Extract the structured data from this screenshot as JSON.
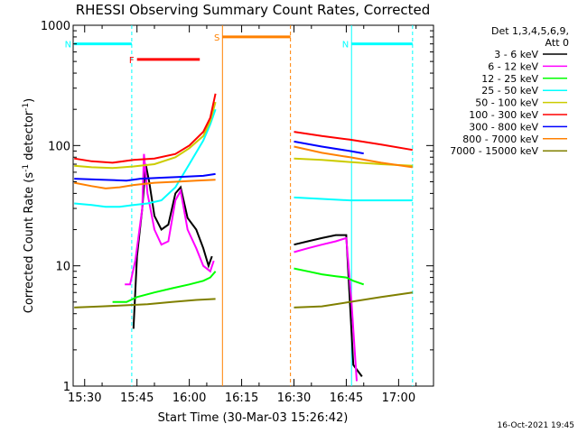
{
  "chart_data": {
    "type": "line",
    "title": "RHESSI Observing Summary Count Rates, Corrected",
    "xlabel": "Start Time (30-Mar-03 15:26:42)",
    "ylabel_main": "Corrected Count Rate (s",
    "ylabel_sup1": "-1",
    "ylabel_mid": " detector",
    "ylabel_sup2": "-1",
    "ylabel_end": ")",
    "y_scale": "log",
    "ylim": [
      1,
      1000
    ],
    "xlim": [
      "15:26:42",
      "17:10:00"
    ],
    "x_ticks": [
      "15:30",
      "15:45",
      "16:00",
      "16:15",
      "16:30",
      "16:45",
      "17:00"
    ],
    "y_ticks": [
      "1",
      "10",
      "100",
      "1000"
    ],
    "legend_header": [
      "Det 1,3,4,5,6,9,",
      "Att 0"
    ],
    "series": [
      {
        "name": "3 - 6 keV",
        "color": "#000000",
        "segments": [
          [
            [
              "15:44:00",
              3
            ],
            [
              "15:45:00",
              12
            ],
            [
              "15:46:30",
              30
            ],
            [
              "15:47:30",
              70
            ],
            [
              "15:48:30",
              50
            ],
            [
              "15:50:00",
              26
            ],
            [
              "15:52:00",
              20
            ],
            [
              "15:54:00",
              22
            ],
            [
              "15:56:00",
              40
            ],
            [
              "15:57:30",
              45
            ],
            [
              "15:59:30",
              25
            ],
            [
              "16:02:00",
              20
            ],
            [
              "16:04:00",
              14
            ],
            [
              "16:05:30",
              10
            ],
            [
              "16:06:30",
              12
            ]
          ],
          [
            [
              "16:30:00",
              15
            ],
            [
              "16:34:00",
              16
            ],
            [
              "16:38:00",
              17
            ],
            [
              "16:42:00",
              18
            ],
            [
              "16:45:00",
              18
            ],
            [
              "16:47:00",
              1.5
            ],
            [
              "16:49:30",
              1.2
            ]
          ]
        ]
      },
      {
        "name": "6 - 12 keV",
        "color": "#ff00ff",
        "segments": [
          [
            [
              "15:41:30",
              7
            ],
            [
              "15:43:00",
              7
            ],
            [
              "15:44:30",
              11
            ],
            [
              "15:46:30",
              30
            ],
            [
              "15:47:00",
              85
            ],
            [
              "15:48:00",
              40
            ],
            [
              "15:50:00",
              20
            ],
            [
              "15:52:00",
              15
            ],
            [
              "15:54:00",
              16
            ],
            [
              "15:56:00",
              35
            ],
            [
              "15:57:30",
              42
            ],
            [
              "15:59:30",
              20
            ],
            [
              "16:02:00",
              14
            ],
            [
              "16:04:00",
              10
            ],
            [
              "16:06:00",
              9
            ],
            [
              "16:07:00",
              11
            ]
          ],
          [
            [
              "16:30:00",
              13
            ],
            [
              "16:34:00",
              14
            ],
            [
              "16:38:00",
              15
            ],
            [
              "16:42:00",
              16
            ],
            [
              "16:45:00",
              17
            ],
            [
              "16:46:30",
              5
            ],
            [
              "16:48:00",
              1.1
            ]
          ]
        ]
      },
      {
        "name": "12 - 25 keV",
        "color": "#00ff00",
        "segments": [
          [
            [
              "15:38:00",
              5
            ],
            [
              "15:42:00",
              5
            ],
            [
              "15:45:00",
              5.5
            ],
            [
              "15:50:00",
              6
            ],
            [
              "15:55:00",
              6.5
            ],
            [
              "16:00:00",
              7
            ],
            [
              "16:04:00",
              7.5
            ],
            [
              "16:06:00",
              8
            ],
            [
              "16:07:30",
              9
            ]
          ],
          [
            [
              "16:30:00",
              9.5
            ],
            [
              "16:34:00",
              9
            ],
            [
              "16:38:00",
              8.5
            ],
            [
              "16:42:00",
              8.2
            ],
            [
              "16:45:00",
              8
            ],
            [
              "16:47:00",
              7.5
            ],
            [
              "16:50:00",
              7
            ]
          ]
        ]
      },
      {
        "name": "25 - 50 keV",
        "color": "#00ffff",
        "segments": [
          [
            [
              "15:27:00",
              33
            ],
            [
              "15:32:00",
              32
            ],
            [
              "15:36:00",
              31
            ],
            [
              "15:40:00",
              31
            ],
            [
              "15:44:00",
              32
            ],
            [
              "15:48:00",
              33
            ],
            [
              "15:52:00",
              35
            ],
            [
              "15:56:00",
              45
            ],
            [
              "16:00:00",
              70
            ],
            [
              "16:04:00",
              110
            ],
            [
              "16:06:00",
              150
            ],
            [
              "16:07:30",
              200
            ]
          ],
          [
            [
              "16:30:00",
              37
            ],
            [
              "16:38:00",
              36
            ],
            [
              "16:46:00",
              35
            ],
            [
              "16:55:00",
              35
            ],
            [
              "17:04:00",
              35
            ]
          ]
        ]
      },
      {
        "name": "50 - 100 keV",
        "color": "#cccc00",
        "segments": [
          [
            [
              "15:27:00",
              68
            ],
            [
              "15:32:00",
              66
            ],
            [
              "15:38:00",
              65
            ],
            [
              "15:44:00",
              67
            ],
            [
              "15:50:00",
              70
            ],
            [
              "15:56:00",
              80
            ],
            [
              "16:00:00",
              95
            ],
            [
              "16:04:00",
              120
            ],
            [
              "16:06:00",
              160
            ],
            [
              "16:07:30",
              230
            ]
          ],
          [
            [
              "16:30:00",
              78
            ],
            [
              "16:38:00",
              76
            ],
            [
              "16:46:00",
              73
            ],
            [
              "16:55:00",
              70
            ],
            [
              "17:04:00",
              68
            ]
          ]
        ]
      },
      {
        "name": "100 - 300 keV",
        "color": "#ff0000",
        "segments": [
          [
            [
              "15:27:00",
              78
            ],
            [
              "15:32:00",
              74
            ],
            [
              "15:38:00",
              72
            ],
            [
              "15:44:00",
              76
            ],
            [
              "15:50:00",
              78
            ],
            [
              "15:56:00",
              85
            ],
            [
              "16:00:00",
              100
            ],
            [
              "16:04:00",
              130
            ],
            [
              "16:06:00",
              170
            ],
            [
              "16:07:30",
              270
            ]
          ],
          [
            [
              "16:30:00",
              130
            ],
            [
              "16:38:00",
              120
            ],
            [
              "16:46:00",
              112
            ],
            [
              "16:55:00",
              102
            ],
            [
              "17:04:00",
              92
            ]
          ]
        ]
      },
      {
        "name": "300 - 800 keV",
        "color": "#0000ff",
        "segments": [
          [
            [
              "15:27:00",
              53
            ],
            [
              "15:35:00",
              52
            ],
            [
              "15:42:00",
              51
            ],
            [
              "15:46:00",
              53
            ],
            [
              "15:52:00",
              54
            ],
            [
              "15:58:00",
              55
            ],
            [
              "16:04:00",
              56
            ],
            [
              "16:07:30",
              58
            ]
          ],
          [
            [
              "16:30:00",
              108
            ],
            [
              "16:38:00",
              98
            ],
            [
              "16:46:00",
              90
            ],
            [
              "16:50:00",
              86
            ]
          ]
        ]
      },
      {
        "name": "800 - 7000 keV",
        "color": "#ff8000",
        "segments": [
          [
            [
              "15:27:00",
              49
            ],
            [
              "15:32:00",
              46
            ],
            [
              "15:36:00",
              44
            ],
            [
              "15:40:00",
              45
            ],
            [
              "15:44:00",
              47
            ],
            [
              "15:50:00",
              49
            ],
            [
              "15:56:00",
              50
            ],
            [
              "16:02:00",
              51
            ],
            [
              "16:07:30",
              52
            ]
          ],
          [
            [
              "16:30:00",
              98
            ],
            [
              "16:38:00",
              87
            ],
            [
              "16:46:00",
              80
            ],
            [
              "16:55:00",
              72
            ],
            [
              "17:04:00",
              66
            ]
          ]
        ]
      },
      {
        "name": "7000 - 15000 keV",
        "color": "#808000",
        "segments": [
          [
            [
              "15:27:00",
              4.5
            ],
            [
              "15:35:00",
              4.6
            ],
            [
              "15:42:00",
              4.7
            ],
            [
              "15:48:00",
              4.8
            ],
            [
              "15:55:00",
              5
            ],
            [
              "16:02:00",
              5.2
            ],
            [
              "16:07:30",
              5.3
            ]
          ],
          [
            [
              "16:30:00",
              4.5
            ],
            [
              "16:38:00",
              4.6
            ],
            [
              "16:46:00",
              5
            ],
            [
              "16:55:00",
              5.5
            ],
            [
              "17:04:00",
              6
            ]
          ]
        ]
      }
    ],
    "intervals": [
      {
        "label": "N",
        "color": "#00ffff",
        "start": "15:27:00",
        "end": "15:43:30",
        "y": 700
      },
      {
        "label": "N",
        "color": "#00ffff",
        "start": "16:46:30",
        "end": "17:04:00",
        "y": 700
      },
      {
        "label": "F",
        "color": "#ff0000",
        "start": "15:45:00",
        "end": "16:03:00",
        "y": 520
      },
      {
        "label": "S",
        "color": "#ff8000",
        "start": "16:09:30",
        "end": "16:29:00",
        "y": 800
      }
    ],
    "vertical_markers": [
      {
        "time": "15:43:30",
        "color": "#00ffff",
        "style": "dashed"
      },
      {
        "time": "16:09:30",
        "color": "#ff8000",
        "style": "solid"
      },
      {
        "time": "16:29:00",
        "color": "#ff8000",
        "style": "dashed"
      },
      {
        "time": "16:46:30",
        "color": "#00ffff",
        "style": "solid"
      },
      {
        "time": "17:04:00",
        "color": "#00ffff",
        "style": "dashed"
      }
    ],
    "timestamp": "16-Oct-2021 19:45"
  }
}
